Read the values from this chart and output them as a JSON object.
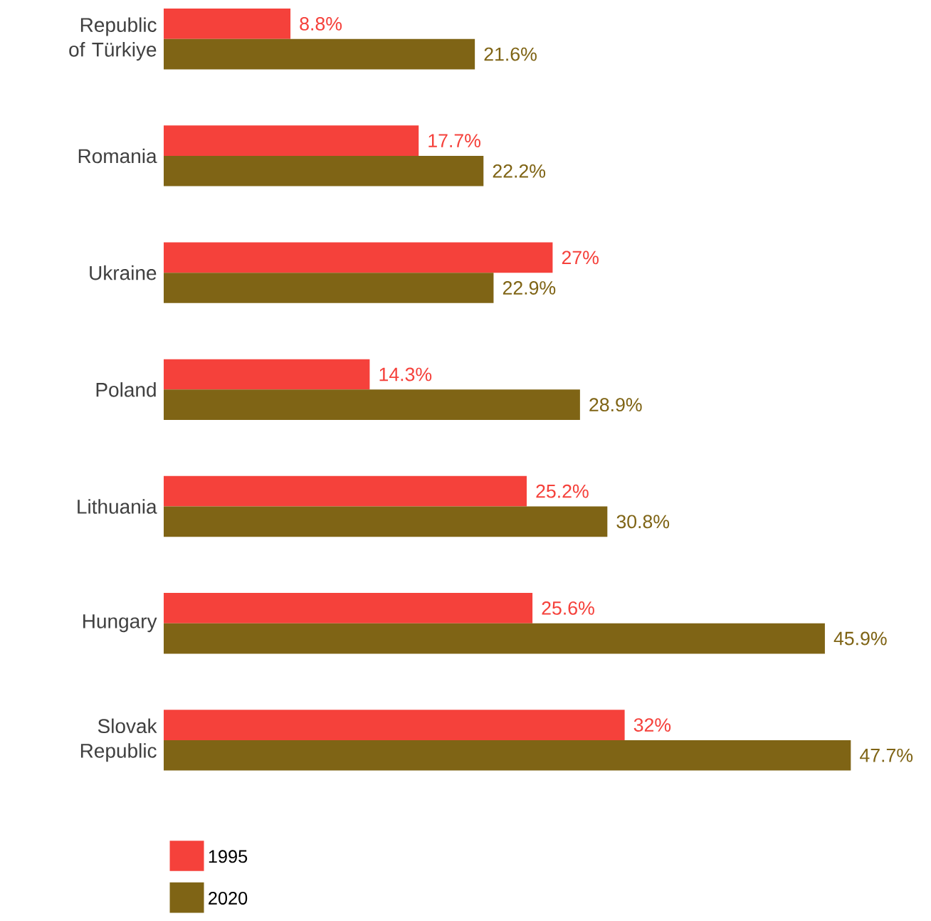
{
  "chart_data": {
    "type": "bar",
    "orientation": "horizontal",
    "categories": [
      "Republic of Türkiye",
      "Romania",
      "Ukraine",
      "Poland",
      "Lithuania",
      "Hungary",
      "Slovak Republic"
    ],
    "series": [
      {
        "name": "1995",
        "color": "#f5413b",
        "values": [
          8.8,
          17.7,
          27,
          14.3,
          25.2,
          25.6,
          32
        ],
        "value_labels": [
          "8.8%",
          "17.7%",
          "27%",
          "14.3%",
          "25.2%",
          "25.6%",
          "32%"
        ]
      },
      {
        "name": "2020",
        "color": "#7f6415",
        "values": [
          21.6,
          22.2,
          22.9,
          28.9,
          30.8,
          45.9,
          47.7
        ],
        "value_labels": [
          "21.6%",
          "22.2%",
          "22.9%",
          "28.9%",
          "30.8%",
          "45.9%",
          "47.7%"
        ]
      }
    ],
    "legend": "bottom left"
  }
}
